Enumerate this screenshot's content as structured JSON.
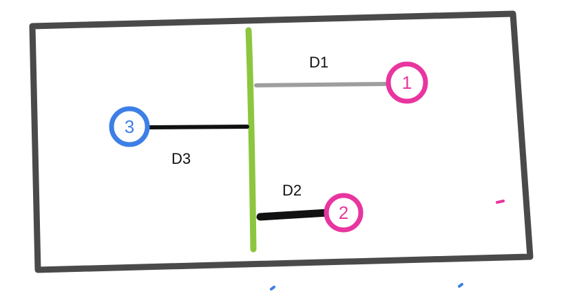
{
  "colors": {
    "frame": "#4a4a4a",
    "divider": "#8cc63f",
    "line1": "#9e9e9e",
    "line2": "#111111",
    "line3": "#111111",
    "node1": "#e8359f",
    "node2": "#e8359f",
    "node3": "#3d7fe6",
    "text": "#111111"
  },
  "labels": {
    "d1": "D1",
    "d2": "D2",
    "d3": "D3"
  },
  "nodes": {
    "n1": "1",
    "n2": "2",
    "n3": "3"
  }
}
